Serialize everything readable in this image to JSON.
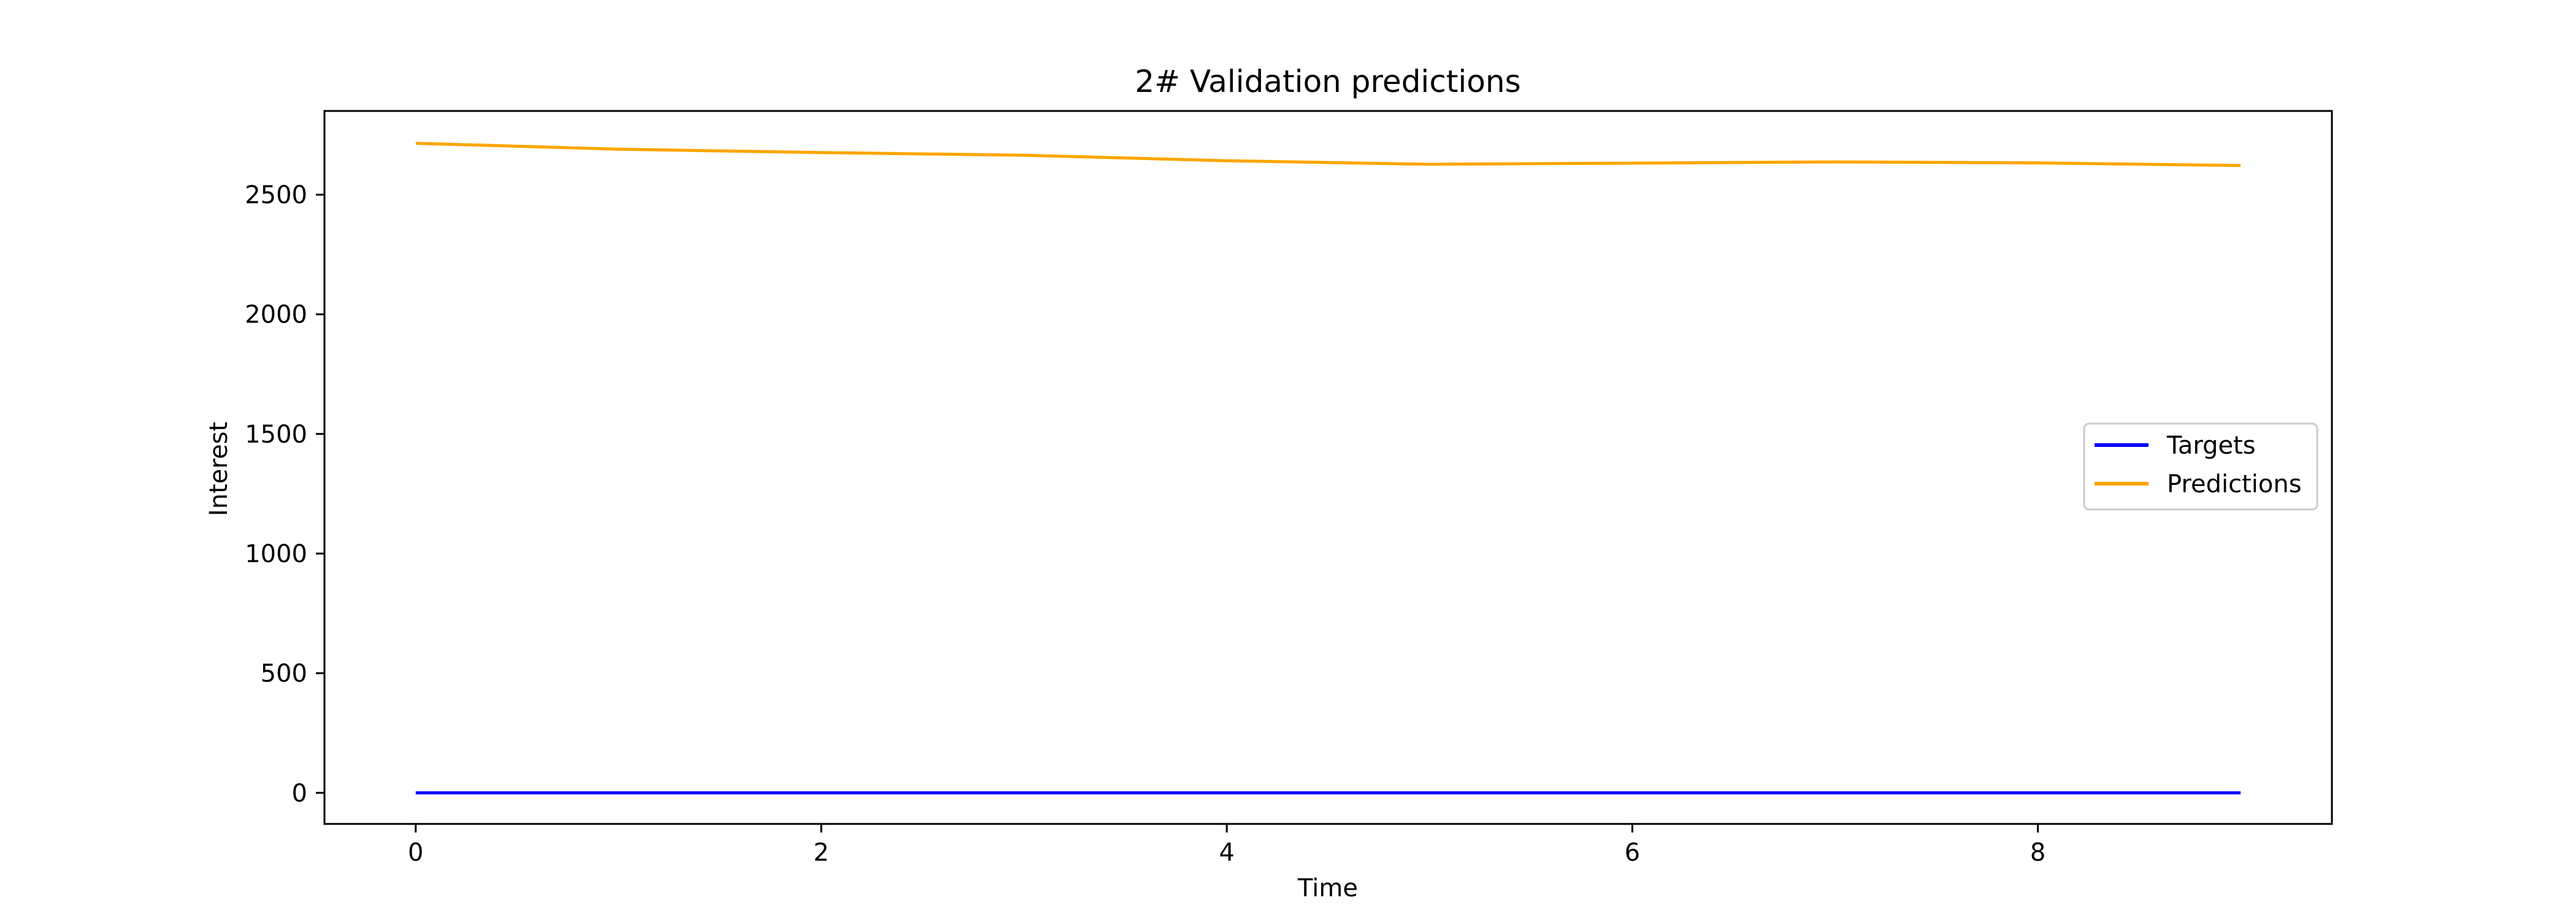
{
  "chart_data": {
    "type": "line",
    "title": "2# Validation predictions",
    "xlabel": "Time",
    "ylabel": "Interest",
    "x": [
      0,
      1,
      2,
      3,
      4,
      5,
      6,
      7,
      8,
      9
    ],
    "xlim": [
      -0.45,
      9.45
    ],
    "ylim": [
      -130,
      2850
    ],
    "x_ticks": [
      0,
      2,
      4,
      6,
      8
    ],
    "y_ticks": [
      0,
      500,
      1000,
      1500,
      2000,
      2500
    ],
    "grid": false,
    "legend_position": "center-right",
    "series": [
      {
        "name": "Targets",
        "color": "#0000ff",
        "values": [
          0,
          0,
          0,
          0,
          0,
          0,
          0,
          0,
          0,
          0
        ]
      },
      {
        "name": "Predictions",
        "color": "#ffa500",
        "values": [
          2715,
          2690,
          2676,
          2665,
          2642,
          2627,
          2632,
          2637,
          2633,
          2622
        ]
      }
    ]
  }
}
